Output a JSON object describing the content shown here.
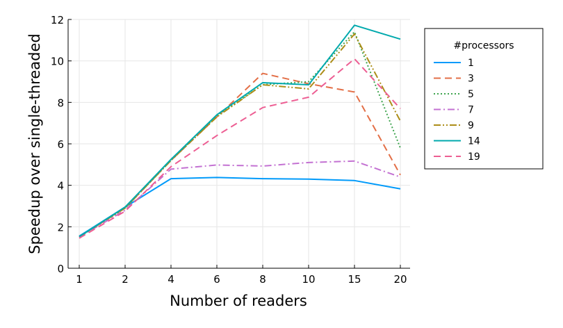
{
  "chart_data": {
    "type": "line",
    "xlabel": "Number of readers",
    "ylabel": "Speedup over single-threaded",
    "categories": [
      "1",
      "2",
      "4",
      "6",
      "8",
      "10",
      "15",
      "20"
    ],
    "yticks": [
      "0",
      "2",
      "4",
      "6",
      "8",
      "10",
      "12"
    ],
    "ylim": [
      0,
      12
    ],
    "grid": true,
    "legend": {
      "title": "#processors",
      "placement": "right"
    },
    "series": [
      {
        "name": "1",
        "color": "#009AFA",
        "dash": "solid",
        "values": [
          1.55,
          2.95,
          4.32,
          4.38,
          4.32,
          4.3,
          4.23,
          3.83
        ]
      },
      {
        "name": "3",
        "color": "#E36F47",
        "dash": "dash",
        "values": [
          1.52,
          2.9,
          5.2,
          7.3,
          9.4,
          8.9,
          8.5,
          4.5
        ]
      },
      {
        "name": "5",
        "color": "#3EA44E",
        "dash": "dot",
        "values": [
          1.52,
          2.9,
          5.2,
          7.35,
          8.85,
          9.0,
          11.4,
          5.8
        ]
      },
      {
        "name": "7",
        "color": "#C371D2",
        "dash": "dashdot",
        "values": [
          1.5,
          2.8,
          4.78,
          4.98,
          4.93,
          5.1,
          5.17,
          4.4
        ]
      },
      {
        "name": "9",
        "color": "#AC8D18",
        "dash": "dashdotdot",
        "values": [
          1.52,
          2.9,
          5.2,
          7.3,
          8.85,
          8.65,
          11.3,
          7.1
        ]
      },
      {
        "name": "14",
        "color": "#00A9AD",
        "dash": "solid",
        "values": [
          1.52,
          2.95,
          5.25,
          7.4,
          8.95,
          8.85,
          11.72,
          11.05
        ]
      },
      {
        "name": "19",
        "color": "#ED5E93",
        "dash": "dash",
        "values": [
          1.45,
          2.75,
          4.9,
          6.4,
          7.75,
          8.25,
          10.1,
          7.7
        ]
      }
    ]
  }
}
